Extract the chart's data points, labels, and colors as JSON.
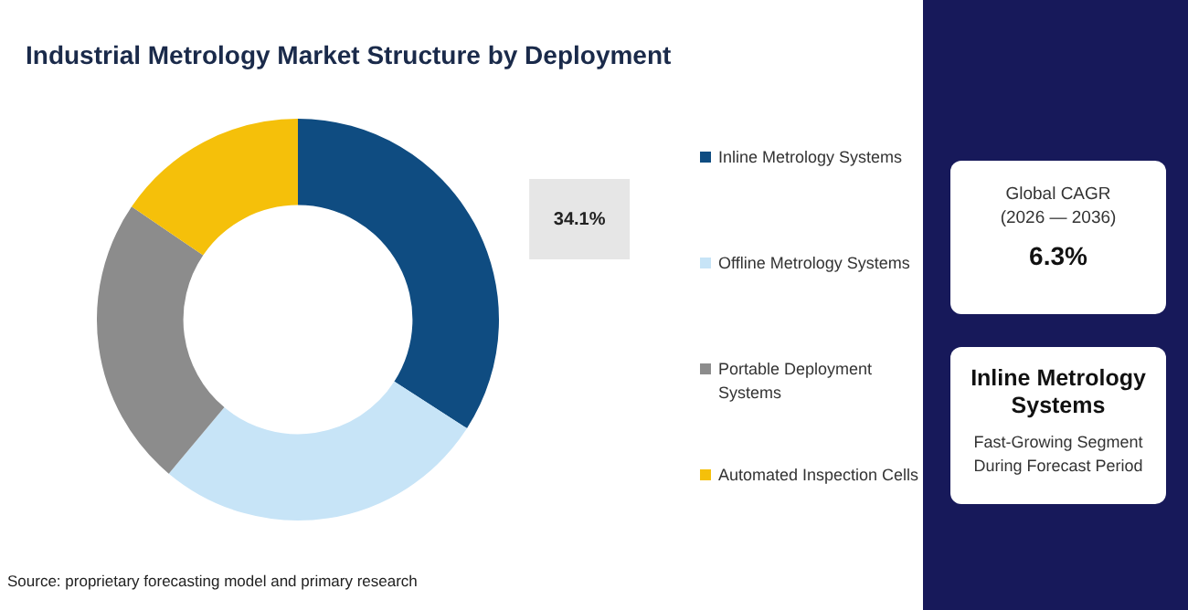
{
  "chart_data": {
    "type": "donut",
    "title": "Industrial Metrology Market Structure by Deployment",
    "categories": [
      "Inline Metrology Systems",
      "Offline Metrology Systems",
      "Portable Deployment Systems",
      "Automated Inspection Cells"
    ],
    "values": [
      34.1,
      27,
      23.4,
      15.5
    ],
    "colors": [
      "#0f4c81",
      "#c7e4f7",
      "#8c8c8c",
      "#f5c00a"
    ],
    "value_labels": [
      "34.1%",
      null,
      null,
      null
    ],
    "legend": "right",
    "annotations": [
      "Source: proprietary forecasting model and primary research",
      "Global CAGR\n(2026 — 2036)",
      "6.3%",
      "Inline Metrology Systems",
      "Fast-Growing Segment\nDuring Forecast Period"
    ]
  }
}
